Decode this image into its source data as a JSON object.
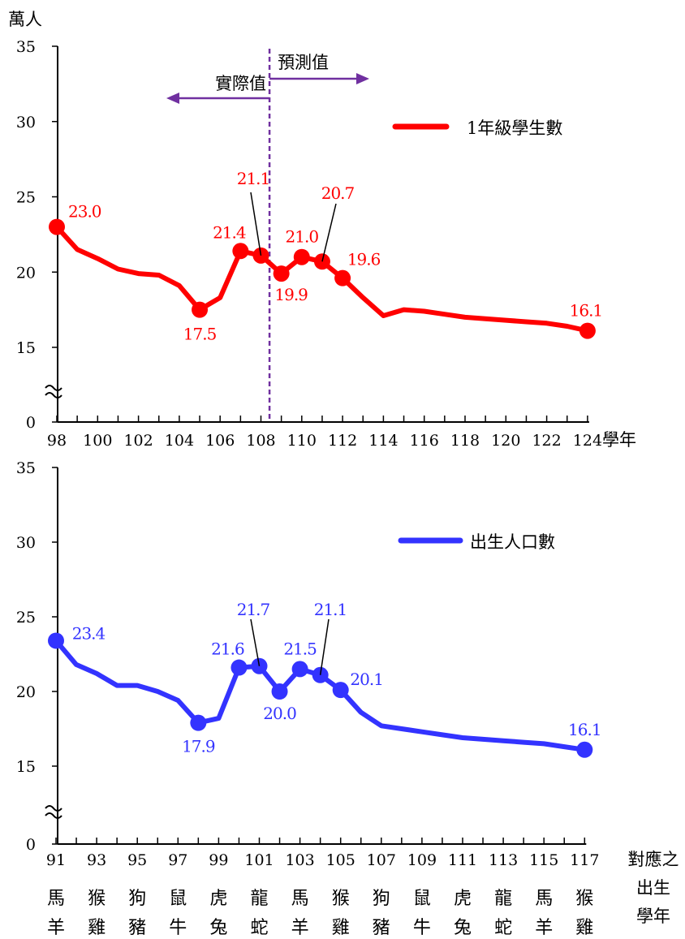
{
  "chart_data": [
    {
      "type": "line",
      "y_unit": "萬人",
      "xlabel": "學年",
      "x_ticks": [
        "98",
        "100",
        "102",
        "104",
        "106",
        "108",
        "110",
        "112",
        "114",
        "116",
        "118",
        "120",
        "122",
        "124"
      ],
      "y_ticks": [
        "0",
        "15",
        "20",
        "25",
        "30",
        "35"
      ],
      "ylim": [
        15,
        35
      ],
      "axis_break": true,
      "grid": false,
      "legend_position": "top-right",
      "divider": {
        "x": 108.5,
        "left_label": "實際值",
        "right_label": "預測值",
        "color": "#7030a0"
      },
      "series": [
        {
          "name": "1年級學生數",
          "color": "#ff0000",
          "x": [
            98,
            99,
            100,
            101,
            102,
            103,
            104,
            105,
            106,
            107,
            108,
            109,
            110,
            111,
            112,
            113,
            114,
            115,
            116,
            117,
            118,
            119,
            120,
            121,
            122,
            123,
            124
          ],
          "y": [
            23.0,
            21.5,
            20.9,
            20.2,
            19.9,
            19.8,
            19.1,
            17.5,
            18.3,
            21.4,
            21.1,
            19.9,
            21.0,
            20.7,
            19.6,
            18.3,
            17.1,
            17.5,
            17.4,
            17.2,
            17.0,
            16.9,
            16.8,
            16.7,
            16.6,
            16.4,
            16.1
          ],
          "markers_x": [
            98,
            105,
            107,
            108,
            109,
            110,
            111,
            112,
            124
          ],
          "data_labels": [
            {
              "x": 98,
              "text": "23.0"
            },
            {
              "x": 105,
              "text": "17.5"
            },
            {
              "x": 107,
              "text": "21.4"
            },
            {
              "x": 108,
              "text": "21.1"
            },
            {
              "x": 109,
              "text": "19.9"
            },
            {
              "x": 110,
              "text": "21.0"
            },
            {
              "x": 111,
              "text": "20.7"
            },
            {
              "x": 112,
              "text": "19.6"
            },
            {
              "x": 124,
              "text": "16.1"
            }
          ]
        }
      ]
    },
    {
      "type": "line",
      "y_unit": "",
      "xlabel": "對應之出生學年",
      "x_ticks": [
        "91",
        "93",
        "95",
        "97",
        "99",
        "101",
        "103",
        "105",
        "107",
        "109",
        "111",
        "113",
        "115",
        "117"
      ],
      "x_ticks_zodiac": [
        [
          "馬",
          "羊"
        ],
        [
          "猴",
          "雞"
        ],
        [
          "狗",
          "豬"
        ],
        [
          "鼠",
          "牛"
        ],
        [
          "虎",
          "兔"
        ],
        [
          "龍",
          "蛇"
        ],
        [
          "馬",
          "羊"
        ],
        [
          "猴",
          "雞"
        ],
        [
          "狗",
          "豬"
        ],
        [
          "鼠",
          "牛"
        ],
        [
          "虎",
          "兔"
        ],
        [
          "龍",
          "蛇"
        ],
        [
          "馬",
          "羊"
        ],
        [
          "猴",
          "雞"
        ]
      ],
      "y_ticks": [
        "0",
        "15",
        "20",
        "25",
        "30",
        "35"
      ],
      "ylim": [
        15,
        35
      ],
      "axis_break": true,
      "grid": false,
      "legend_position": "top-right",
      "series": [
        {
          "name": "出生人口數",
          "color": "#3333ff",
          "x": [
            91,
            92,
            93,
            94,
            95,
            96,
            97,
            98,
            99,
            100,
            101,
            102,
            103,
            104,
            105,
            106,
            107,
            108,
            109,
            110,
            111,
            112,
            113,
            114,
            115,
            116,
            117
          ],
          "y": [
            23.4,
            21.8,
            21.2,
            20.4,
            20.4,
            20.0,
            19.4,
            17.9,
            18.2,
            21.6,
            21.7,
            20.0,
            21.5,
            21.1,
            20.1,
            18.6,
            17.7,
            17.5,
            17.3,
            17.1,
            16.9,
            16.8,
            16.7,
            16.6,
            16.5,
            16.3,
            16.1
          ],
          "markers_x": [
            91,
            98,
            100,
            101,
            102,
            103,
            104,
            105,
            117
          ],
          "data_labels": [
            {
              "x": 91,
              "text": "23.4"
            },
            {
              "x": 98,
              "text": "17.9"
            },
            {
              "x": 100,
              "text": "21.6"
            },
            {
              "x": 101,
              "text": "21.7"
            },
            {
              "x": 102,
              "text": "20.0"
            },
            {
              "x": 103,
              "text": "21.5"
            },
            {
              "x": 104,
              "text": "21.1"
            },
            {
              "x": 105,
              "text": "20.1"
            },
            {
              "x": 117,
              "text": "16.1"
            }
          ]
        }
      ]
    }
  ]
}
